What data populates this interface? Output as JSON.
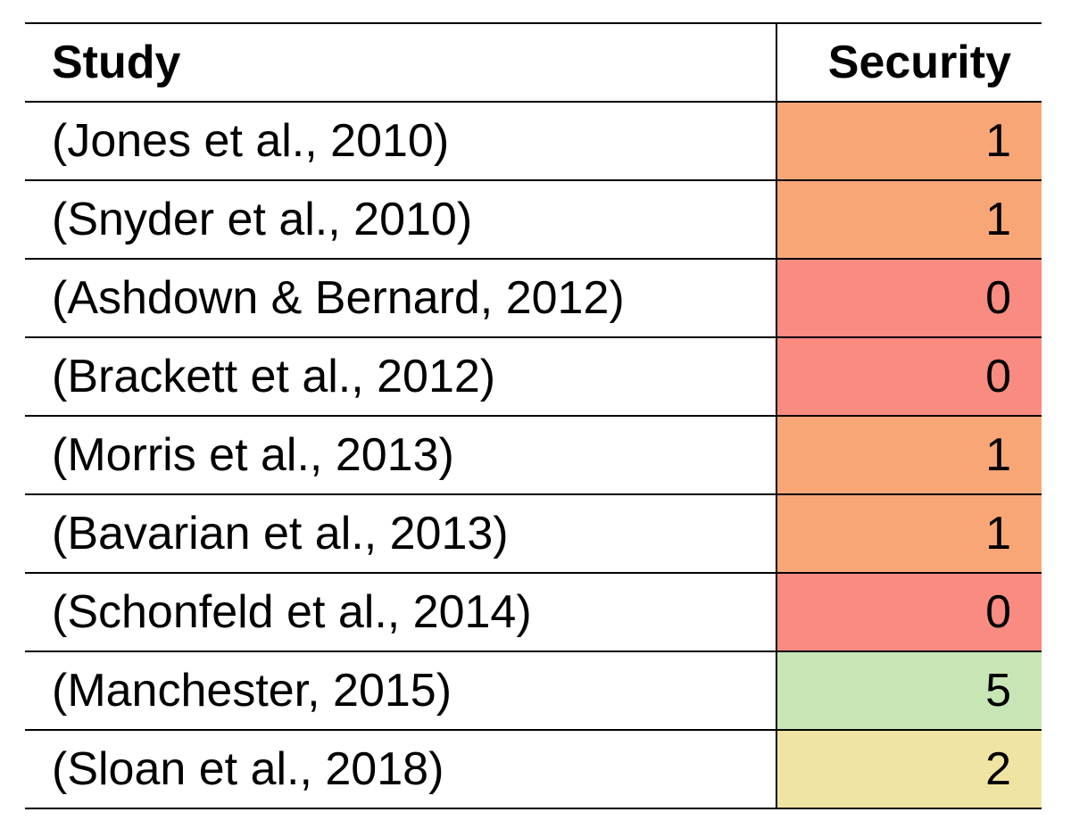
{
  "table": {
    "columns": [
      "Study",
      "Security"
    ],
    "rows": [
      {
        "study": "(Jones et al., 2010)",
        "security": 1,
        "color": "#f9a677"
      },
      {
        "study": "(Snyder et al., 2010)",
        "security": 1,
        "color": "#f9a677"
      },
      {
        "study": "(Ashdown & Bernard, 2012)",
        "security": 0,
        "color": "#f98b80"
      },
      {
        "study": "(Brackett et al., 2012)",
        "security": 0,
        "color": "#f98b80"
      },
      {
        "study": "(Morris et al., 2013)",
        "security": 1,
        "color": "#f9a677"
      },
      {
        "study": "(Bavarian et al., 2013)",
        "security": 1,
        "color": "#f9a677"
      },
      {
        "study": "(Schonfeld et al., 2014)",
        "security": 0,
        "color": "#f98b80"
      },
      {
        "study": "(Manchester, 2015)",
        "security": 5,
        "color": "#c8e6b5"
      },
      {
        "study": "(Sloan et al., 2018)",
        "security": 2,
        "color": "#f0e4a2"
      }
    ]
  }
}
